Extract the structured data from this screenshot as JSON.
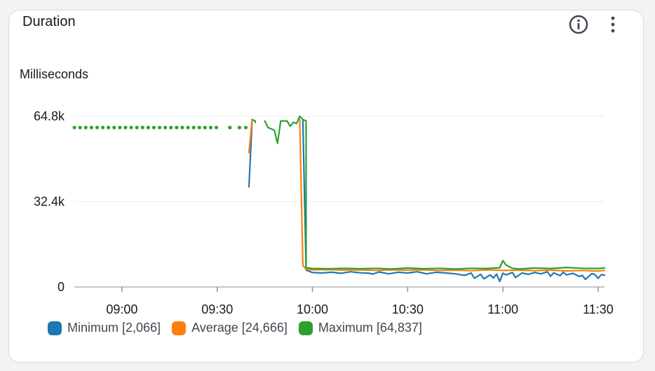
{
  "widget": {
    "title": "Duration",
    "info_icon": "info-circle-icon",
    "menu_icon": "more-vertical-icon"
  },
  "chart_data": {
    "type": "line",
    "title": "Duration",
    "ylabel": "Milliseconds",
    "ylim": [
      0,
      64800
    ],
    "yticks": [
      {
        "value": 0,
        "label": "0"
      },
      {
        "value": 32400,
        "label": "32.4k"
      },
      {
        "value": 64800,
        "label": "64.8k"
      }
    ],
    "xrange": [
      "08:45",
      "11:32"
    ],
    "xticks": [
      "09:00",
      "09:30",
      "10:00",
      "10:30",
      "11:00",
      "11:30"
    ],
    "grid": true,
    "legend": "bottom-left",
    "series": [
      {
        "name": "Minimum",
        "summary": "[2,066]",
        "color": "#1f77b4",
        "segments": [
          [
            [
              "09:40",
              38000
            ],
            [
              "09:41",
              63000
            ]
          ],
          [
            [
              "09:57",
              63000
            ],
            [
              "09:58",
              6400
            ],
            [
              "10:00",
              5500
            ],
            [
              "10:03",
              5300
            ],
            [
              "10:06",
              5600
            ],
            [
              "10:09",
              5200
            ],
            [
              "10:12",
              5800
            ],
            [
              "10:15",
              5400
            ],
            [
              "10:18",
              5200
            ],
            [
              "10:19",
              4900
            ],
            [
              "10:21",
              5700
            ],
            [
              "10:24",
              5000
            ],
            [
              "10:27",
              5600
            ],
            [
              "10:30",
              5300
            ],
            [
              "10:33",
              5800
            ],
            [
              "10:36",
              5000
            ],
            [
              "10:39",
              5600
            ],
            [
              "10:42",
              5300
            ],
            [
              "10:45",
              5000
            ],
            [
              "10:48",
              4400
            ],
            [
              "10:50",
              5300
            ],
            [
              "10:51",
              3300
            ],
            [
              "10:53",
              4800
            ],
            [
              "10:54",
              3100
            ],
            [
              "10:56",
              4600
            ],
            [
              "10:57",
              3400
            ],
            [
              "10:58",
              4900
            ],
            [
              "10:59",
              2100
            ],
            [
              "11:00",
              5200
            ],
            [
              "11:01",
              4600
            ],
            [
              "11:03",
              5500
            ],
            [
              "11:04",
              3600
            ],
            [
              "11:06",
              5300
            ],
            [
              "11:08",
              4800
            ],
            [
              "11:10",
              5500
            ],
            [
              "11:12",
              5000
            ],
            [
              "11:14",
              5800
            ],
            [
              "11:15",
              4100
            ],
            [
              "11:16",
              5400
            ],
            [
              "11:18",
              4300
            ],
            [
              "11:19",
              5600
            ],
            [
              "11:20",
              4600
            ],
            [
              "11:22",
              5200
            ],
            [
              "11:24",
              4000
            ],
            [
              "11:25",
              4400
            ],
            [
              "11:26",
              2900
            ],
            [
              "11:28",
              5100
            ],
            [
              "11:29",
              4700
            ],
            [
              "11:30",
              3300
            ],
            [
              "11:31",
              4700
            ],
            [
              "11:32",
              4500
            ]
          ]
        ]
      },
      {
        "name": "Average",
        "summary": "[24,666]",
        "color": "#ff7f0e",
        "segments": [
          [
            [
              "09:40",
              51000
            ],
            [
              "09:41",
              63500
            ]
          ],
          [
            [
              "09:56",
              63500
            ],
            [
              "09:57",
              8200
            ],
            [
              "09:58",
              6700
            ],
            [
              "10:00",
              6500
            ],
            [
              "10:05",
              6600
            ],
            [
              "10:10",
              6400
            ],
            [
              "10:15",
              6500
            ],
            [
              "10:20",
              6300
            ],
            [
              "10:25",
              6500
            ],
            [
              "10:30",
              6400
            ],
            [
              "10:35",
              6500
            ],
            [
              "10:40",
              6300
            ],
            [
              "10:45",
              6400
            ],
            [
              "10:50",
              6200
            ],
            [
              "10:55",
              6500
            ],
            [
              "11:00",
              6300
            ],
            [
              "11:05",
              6400
            ],
            [
              "11:10",
              6200
            ],
            [
              "11:15",
              6400
            ],
            [
              "11:20",
              6100
            ],
            [
              "11:25",
              6300
            ],
            [
              "11:30",
              6000
            ],
            [
              "11:32",
              6300
            ]
          ]
        ]
      },
      {
        "name": "Maximum",
        "summary": "[64,837]",
        "color": "#2ca02c",
        "segments": [
          [
            [
              "08:45",
              60500
            ],
            [
              "09:31",
              60500
            ]
          ],
          [
            [
              "09:34",
              60500
            ],
            [
              "09:34",
              60500
            ]
          ],
          [
            [
              "09:37",
              60500
            ],
            [
              "09:37",
              60500
            ]
          ],
          [
            [
              "09:39",
              60500
            ],
            [
              "09:40",
              60500
            ]
          ],
          [
            [
              "09:41",
              63500
            ],
            [
              "09:42",
              63000
            ],
            [
              "09:42",
              62500
            ]
          ],
          [
            [
              "09:45",
              63000
            ],
            [
              "09:46",
              60500
            ],
            [
              "09:48",
              59500
            ],
            [
              "09:49",
              54500
            ],
            [
              "09:50",
              63000
            ],
            [
              "09:52",
              63000
            ],
            [
              "09:53",
              61000
            ],
            [
              "09:54",
              62500
            ],
            [
              "09:55",
              62000
            ],
            [
              "09:56",
              64800
            ],
            [
              "09:57",
              63500
            ],
            [
              "09:58",
              63000
            ],
            [
              "09:58",
              7300
            ],
            [
              "10:00",
              7000
            ],
            [
              "10:05",
              6900
            ],
            [
              "10:10",
              7100
            ],
            [
              "10:15",
              6900
            ],
            [
              "10:20",
              7100
            ],
            [
              "10:25",
              6800
            ],
            [
              "10:30",
              7200
            ],
            [
              "10:35",
              6900
            ],
            [
              "10:40",
              7100
            ],
            [
              "10:45",
              6800
            ],
            [
              "10:50",
              7100
            ],
            [
              "10:55",
              7000
            ],
            [
              "10:59",
              7300
            ],
            [
              "11:00",
              10000
            ],
            [
              "11:01",
              8300
            ],
            [
              "11:03",
              7100
            ],
            [
              "11:05",
              6800
            ],
            [
              "11:10",
              7200
            ],
            [
              "11:15",
              7000
            ],
            [
              "11:20",
              7400
            ],
            [
              "11:25",
              7100
            ],
            [
              "11:30",
              7000
            ],
            [
              "11:32",
              7200
            ]
          ]
        ]
      }
    ]
  }
}
